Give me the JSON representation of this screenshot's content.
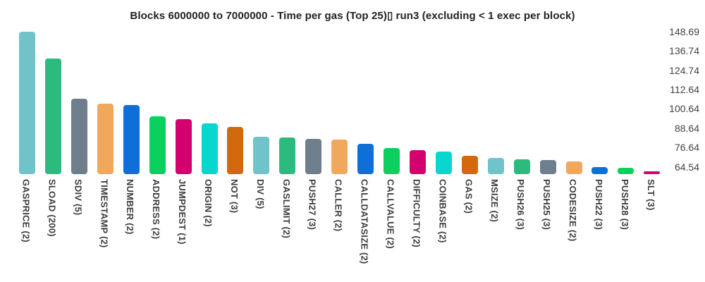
{
  "title": "Blocks 6000000 to 7000000 - Time per gas (Top 25)▯ run3 (excluding < 1 exec per block)",
  "chart_data": {
    "type": "bar",
    "title": "Blocks 6000000 to 7000000 - Time per gas (Top 25)▯ run3 (excluding < 1 exec per block)",
    "xlabel": "",
    "ylabel": "",
    "legend": "none",
    "grid": false,
    "ytick_side": "right",
    "ylim": [
      60,
      151
    ],
    "yticks": [
      148.69,
      136.74,
      124.74,
      112.64,
      100.64,
      88.64,
      76.64,
      64.54
    ],
    "categories": [
      "GASPRICE (2)",
      "SLOAD (200)",
      "SDIV (5)",
      "TIMESTAMP (2)",
      "NUMBER (2)",
      "ADDRESS (2)",
      "JUMPDEST (1)",
      "ORIGIN (2)",
      "NOT (3)",
      "DIV (5)",
      "GASLIMIT (2)",
      "PUSH27 (3)",
      "CALLER (2)",
      "CALLDATASIZE (2)",
      "CALLVALUE (2)",
      "DIFFICULTY (2)",
      "COINBASE (2)",
      "GAS (2)",
      "MSIZE (2)",
      "PUSH26 (3)",
      "PUSH25 (3)",
      "CODESIZE (2)",
      "PUSH22 (3)",
      "PUSH28 (3)",
      "SLT (3)"
    ],
    "values": [
      148.69,
      132.0,
      107.0,
      103.8,
      103.0,
      96.0,
      94.2,
      91.6,
      89.4,
      83.2,
      82.9,
      82.1,
      81.6,
      78.9,
      76.3,
      74.8,
      74.0,
      71.4,
      70.1,
      69.2,
      68.8,
      67.9,
      64.4,
      64.1,
      61.9
    ],
    "palette_cycle": [
      "#6fc3c9",
      "#2bbb7e",
      "#6e7e8c",
      "#f0a95c",
      "#0e6fd9",
      "#0cd05e",
      "#d50070",
      "#09d6ce",
      "#d2690e"
    ]
  },
  "colors": {
    "background": "#ffffff",
    "title_text": "#212121",
    "axis_label_text": "#3d3d3d",
    "tick_label_text": "#424242"
  }
}
